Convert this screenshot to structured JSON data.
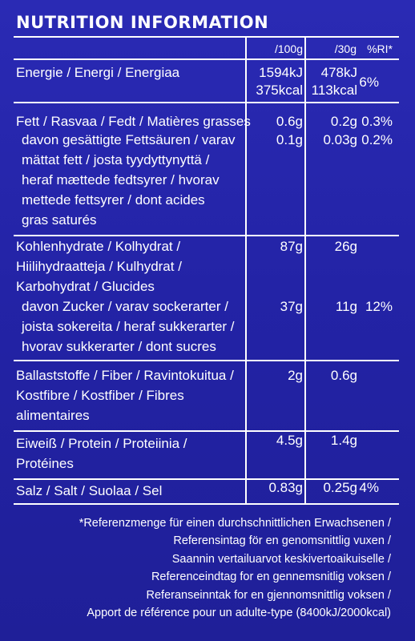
{
  "title": "NUTRITION INFORMATION",
  "headers": {
    "per100": "/100g",
    "per30": "/30g",
    "ri": "%RI*"
  },
  "energy": {
    "label": "Energie / Energi / Energiaa",
    "kj100": "1594kJ",
    "kcal100": "375kcal",
    "kj30": "478kJ",
    "kcal30": "113kcal",
    "ri": "6%"
  },
  "fat": {
    "label": "Fett / Rasvaa / Fedt / Matières grasses",
    "v100": "0.6g",
    "v30": "0.2g",
    "ri": "0.3%"
  },
  "saturates": {
    "lines": [
      "davon gesättigte Fettsäuren / varav",
      "mättat fett / josta tyydyttynyttä /",
      "heraf mættede fedtsyrer / hvorav",
      "mettede fettsyrer / dont acides",
      "gras saturés"
    ],
    "v100": "0.1g",
    "v30": "0.03g",
    "ri": "0.2%"
  },
  "carbs": {
    "lines": [
      "Kohlenhydrate / Kolhydrat /",
      "Hiilihydraatteja / Kulhydrat /",
      "Karbohydrat / Glucides"
    ],
    "v100": "87g",
    "v30": "26g"
  },
  "sugars": {
    "lines": [
      "davon Zucker / varav sockerarter /",
      "joista sokereita / heraf sukkerarter /",
      "hvorav sukkerarter / dont sucres"
    ],
    "v100": "37g",
    "v30": "11g",
    "ri": "12%"
  },
  "fibre": {
    "lines": [
      "Ballaststoffe / Fiber / Ravintokuitua /",
      "Kostfibre / Kostfiber / Fibres",
      "alimentaires"
    ],
    "v100": "2g",
    "v30": "0.6g"
  },
  "protein": {
    "lines": [
      "Eiweiß / Protein / Proteiinia /",
      "Protéines"
    ],
    "v100": "4.5g",
    "v30": "1.4g"
  },
  "salt": {
    "label": "Salz / Salt / Suolaa / Sel",
    "v100": "0.83g",
    "v30": "0.25g",
    "ri": "4%"
  },
  "footnote": [
    "*Referenzmenge für einen durchschnittlichen Erwachsenen /",
    "Referensintag för en genomsnittlig vuxen /",
    "Saannin vertailuarvot keskivertoaikuiselle /",
    "Referenceindtag for en gennemsnitlig voksen /",
    "Referanseinntak for en gjennomsnittlig voksen /",
    "Apport de référence pour un adulte-type (8400kJ/2000kcal)"
  ]
}
